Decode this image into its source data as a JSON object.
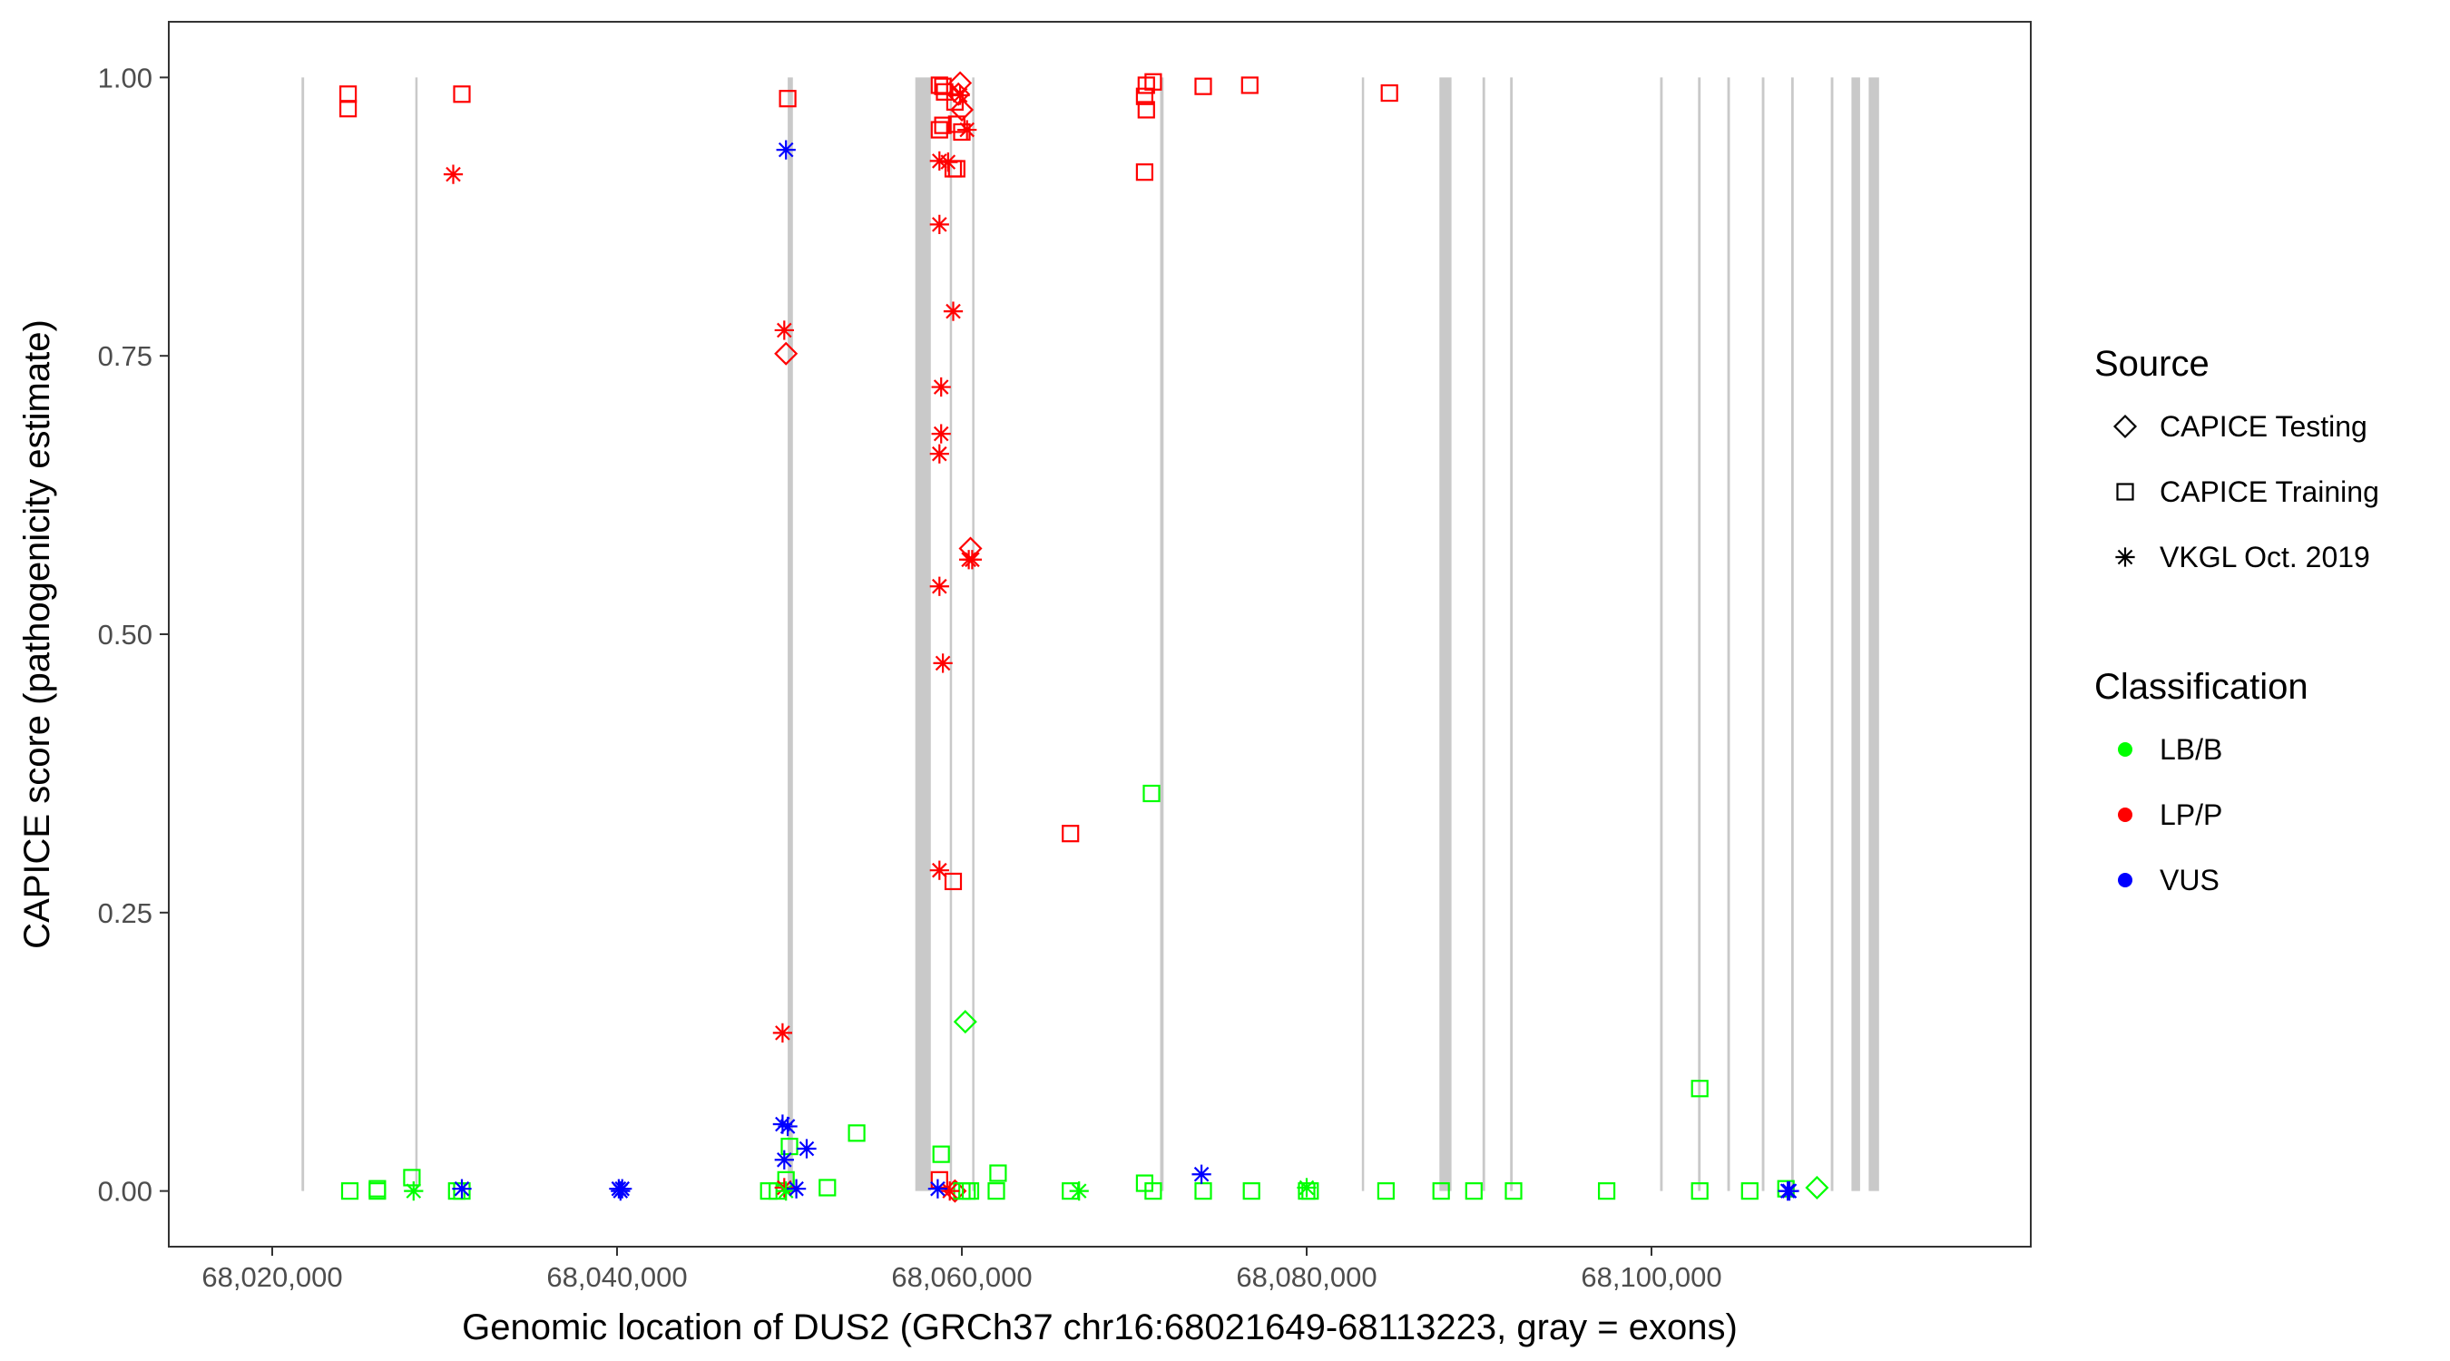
{
  "chart_data": {
    "type": "scatter",
    "title": "",
    "xlabel": "Genomic location of DUS2 (GRCh37 chr16:68021649-68113223, gray = exons)",
    "ylabel": "CAPICE score (pathogenicity estimate)",
    "xlim": [
      68014000,
      68122000
    ],
    "ylim": [
      -0.05,
      1.05
    ],
    "x_ticks": [
      68020000,
      68040000,
      68060000,
      68080000,
      68100000
    ],
    "x_tick_labels": [
      "68,020,000",
      "68,040,000",
      "68,060,000",
      "68,080,000",
      "68,100,000"
    ],
    "y_ticks": [
      0,
      0.25,
      0.5,
      0.75,
      1.0
    ],
    "y_tick_labels": [
      "0.00",
      "0.25",
      "0.50",
      "0.75",
      "1.00"
    ],
    "grid": false,
    "legend_position": "right",
    "legends": [
      {
        "title": "Source",
        "entries": [
          {
            "label": "CAPICE Testing",
            "shape": "diamond"
          },
          {
            "label": "CAPICE Training",
            "shape": "square"
          },
          {
            "label": "VKGL Oct. 2019",
            "shape": "asterisk"
          }
        ]
      },
      {
        "title": "Classification",
        "entries": [
          {
            "label": "LB/B",
            "color": "#00ff00"
          },
          {
            "label": "LP/P",
            "color": "#ff0000"
          },
          {
            "label": "VUS",
            "color": "#0000ff"
          }
        ]
      }
    ],
    "colors": {
      "LB/B": "#00ff00",
      "LP/P": "#ff0000",
      "VUS": "#0000ff",
      "exon": "#c9c9c9"
    },
    "exons": [
      [
        68021700,
        68021850
      ],
      [
        68028300,
        68028420
      ],
      [
        68049900,
        68050200
      ],
      [
        68057300,
        68058200
      ],
      [
        68059300,
        68059400
      ],
      [
        68060600,
        68060720
      ],
      [
        68071500,
        68071700
      ],
      [
        68083200,
        68083300
      ],
      [
        68087700,
        68088400
      ],
      [
        68090200,
        68090350
      ],
      [
        68091800,
        68091950
      ],
      [
        68100500,
        68100650
      ],
      [
        68102700,
        68102850
      ],
      [
        68104400,
        68104550
      ],
      [
        68106400,
        68106550
      ],
      [
        68108100,
        68108250
      ],
      [
        68110400,
        68110550
      ],
      [
        68111600,
        68112100
      ],
      [
        68112600,
        68113200
      ]
    ],
    "series": [
      {
        "source": "CAPICE Testing",
        "classification": "LP/P",
        "points": [
          [
            68049800,
            0.752
          ],
          [
            68059900,
            0.995
          ],
          [
            68060000,
            0.971
          ],
          [
            68059800,
            0.985
          ],
          [
            68060500,
            0.577
          ],
          [
            68059600,
            0.0
          ]
        ]
      },
      {
        "source": "CAPICE Testing",
        "classification": "LB/B",
        "points": [
          [
            68060200,
            0.152
          ],
          [
            68109600,
            0.003
          ]
        ]
      },
      {
        "source": "CAPICE Training",
        "classification": "LP/P",
        "points": [
          [
            68024400,
            0.985
          ],
          [
            68024400,
            0.972
          ],
          [
            68031000,
            0.985
          ],
          [
            68049900,
            0.981
          ],
          [
            68058700,
            0.993
          ],
          [
            68058700,
            0.953
          ],
          [
            68058900,
            0.992
          ],
          [
            68059000,
            0.987
          ],
          [
            68058900,
            0.957
          ],
          [
            68059600,
            0.978
          ],
          [
            68059700,
            0.958
          ],
          [
            68059500,
            0.918
          ],
          [
            68059700,
            0.918
          ],
          [
            68060000,
            0.951
          ],
          [
            68059500,
            0.278
          ],
          [
            68058700,
            0.01
          ],
          [
            68066300,
            0.321
          ],
          [
            68070700,
            0.993
          ],
          [
            68071100,
            0.996
          ],
          [
            68070600,
            0.983
          ],
          [
            68070700,
            0.971
          ],
          [
            68070600,
            0.915
          ],
          [
            68074000,
            0.992
          ],
          [
            68076700,
            0.993
          ],
          [
            68084800,
            0.986
          ]
        ]
      },
      {
        "source": "CAPICE Training",
        "classification": "LB/B",
        "points": [
          [
            68024500,
            0.0
          ],
          [
            68026100,
            0.0
          ],
          [
            68026100,
            0.002
          ],
          [
            68028100,
            0.012
          ],
          [
            68030700,
            0.0
          ],
          [
            68031000,
            0.0
          ],
          [
            68048800,
            0.0
          ],
          [
            68049300,
            0.0
          ],
          [
            68049800,
            0.01
          ],
          [
            68050000,
            0.04
          ],
          [
            68052200,
            0.003
          ],
          [
            68053900,
            0.052
          ],
          [
            68058800,
            0.033
          ],
          [
            68060000,
            0.0
          ],
          [
            68060300,
            0.0
          ],
          [
            68060500,
            0.0
          ],
          [
            68062000,
            0.0
          ],
          [
            68062100,
            0.016
          ],
          [
            68066300,
            0.0
          ],
          [
            68070600,
            0.007
          ],
          [
            68071000,
            0.357
          ],
          [
            68071100,
            0.0
          ],
          [
            68074000,
            0.0
          ],
          [
            68076800,
            0.0
          ],
          [
            68080000,
            0.0
          ],
          [
            68080200,
            0.0
          ],
          [
            68084600,
            0.0
          ],
          [
            68087800,
            0.0
          ],
          [
            68089700,
            0.0
          ],
          [
            68092000,
            0.0
          ],
          [
            68097400,
            0.0
          ],
          [
            68102800,
            0.092
          ],
          [
            68102800,
            0.0
          ],
          [
            68105700,
            0.0
          ],
          [
            68107800,
            0.002
          ]
        ]
      },
      {
        "source": "VKGL Oct. 2019",
        "classification": "LP/P",
        "points": [
          [
            68030500,
            0.913
          ],
          [
            68049700,
            0.773
          ],
          [
            68049600,
            0.142
          ],
          [
            68049700,
            0.003
          ],
          [
            68058700,
            0.925
          ],
          [
            68059200,
            0.924
          ],
          [
            68058700,
            0.868
          ],
          [
            68059500,
            0.79
          ],
          [
            68058800,
            0.722
          ],
          [
            68058800,
            0.68
          ],
          [
            68058700,
            0.662
          ],
          [
            68058700,
            0.543
          ],
          [
            68058900,
            0.474
          ],
          [
            68058700,
            0.288
          ],
          [
            68060300,
            0.953
          ],
          [
            68060400,
            0.567
          ],
          [
            68060600,
            0.567
          ],
          [
            68059900,
            0.984
          ],
          [
            68059300,
            0.0
          ]
        ]
      },
      {
        "source": "VKGL Oct. 2019",
        "classification": "LB/B",
        "points": [
          [
            68028200,
            0.0
          ],
          [
            68049800,
            0.0
          ],
          [
            68066800,
            0.0
          ],
          [
            68080000,
            0.003
          ]
        ]
      },
      {
        "source": "VKGL Oct. 2019",
        "classification": "VUS",
        "points": [
          [
            68031000,
            0.002
          ],
          [
            68040100,
            0.002
          ],
          [
            68040300,
            0.002
          ],
          [
            68040200,
            0.0
          ],
          [
            68049800,
            0.935
          ],
          [
            68049600,
            0.06
          ],
          [
            68049900,
            0.058
          ],
          [
            68051000,
            0.038
          ],
          [
            68049700,
            0.028
          ],
          [
            68050400,
            0.002
          ],
          [
            68058600,
            0.002
          ],
          [
            68073900,
            0.015
          ],
          [
            68107900,
            0.0
          ],
          [
            68108000,
            0.0
          ]
        ]
      }
    ]
  }
}
